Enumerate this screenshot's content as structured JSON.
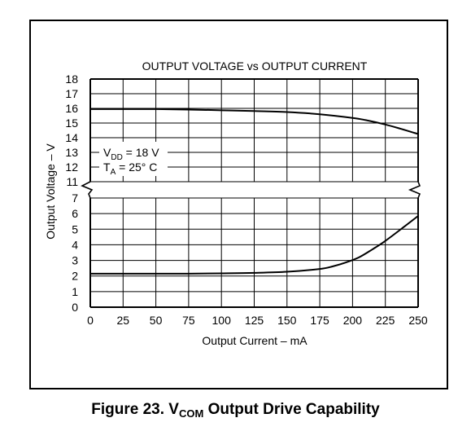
{
  "chart_data": {
    "type": "line",
    "title": "OUTPUT VOLTAGE vs OUTPUT CURRENT",
    "xlabel": "Output Current – mA",
    "ylabel": "Output Voltage – V",
    "xlim": [
      0,
      250
    ],
    "x_ticks": [
      0,
      25,
      50,
      75,
      100,
      125,
      150,
      175,
      200,
      225,
      250
    ],
    "y_ticks_upper": [
      11,
      12,
      13,
      14,
      15,
      16,
      17,
      18
    ],
    "y_ticks_lower": [
      0,
      1,
      2,
      3,
      4,
      5,
      6,
      7
    ],
    "axis_break": "between 7 and 11 V",
    "grid": true,
    "annotation": {
      "vdd_main": "V",
      "vdd_sub": "DD",
      "vdd_rest": " = 18 V",
      "ta_main": "T",
      "ta_sub": "A",
      "ta_rest": " = 25° C"
    },
    "series": [
      {
        "x": [
          0,
          25,
          50,
          75,
          100,
          125,
          150,
          175,
          200,
          210,
          225,
          237,
          250
        ],
        "y": [
          15.95,
          15.95,
          15.95,
          15.92,
          15.87,
          15.82,
          15.75,
          15.6,
          15.35,
          15.2,
          14.9,
          14.6,
          14.25
        ]
      },
      {
        "x": [
          0,
          25,
          50,
          75,
          100,
          125,
          150,
          175,
          185,
          195,
          205,
          215,
          225,
          240,
          250
        ],
        "y": [
          2.15,
          2.15,
          2.15,
          2.15,
          2.17,
          2.2,
          2.27,
          2.45,
          2.62,
          2.87,
          3.2,
          3.7,
          4.25,
          5.2,
          5.85
        ]
      }
    ]
  },
  "caption": {
    "prefix": "Figure 23. V",
    "sub": "COM",
    "suffix": " Output Drive Capability"
  }
}
